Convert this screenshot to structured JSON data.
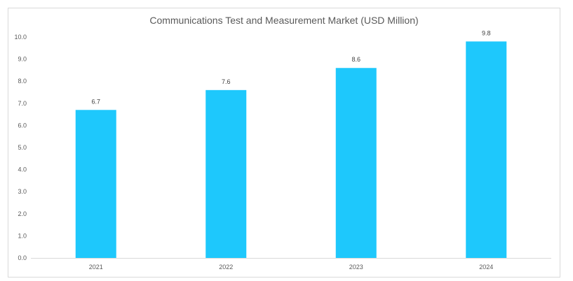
{
  "chart_data": {
    "type": "bar",
    "title": "Communications Test and Measurement Market (USD Million)",
    "categories": [
      "2021",
      "2022",
      "2023",
      "2024"
    ],
    "values": [
      6.7,
      7.6,
      8.6,
      9.8
    ],
    "data_labels": [
      "6.7",
      "7.6",
      "8.6",
      "9.8"
    ],
    "y_ticks": [
      "0.0",
      "1.0",
      "2.0",
      "3.0",
      "4.0",
      "5.0",
      "6.0",
      "7.0",
      "8.0",
      "9.0",
      "10.0"
    ],
    "ylim": [
      0,
      10
    ],
    "xlabel": "",
    "ylabel": "",
    "grid": false,
    "legend": "none",
    "bar_color": "#1ec8fc",
    "axis_color": "#d9d9d9",
    "text_color": "#595959"
  }
}
